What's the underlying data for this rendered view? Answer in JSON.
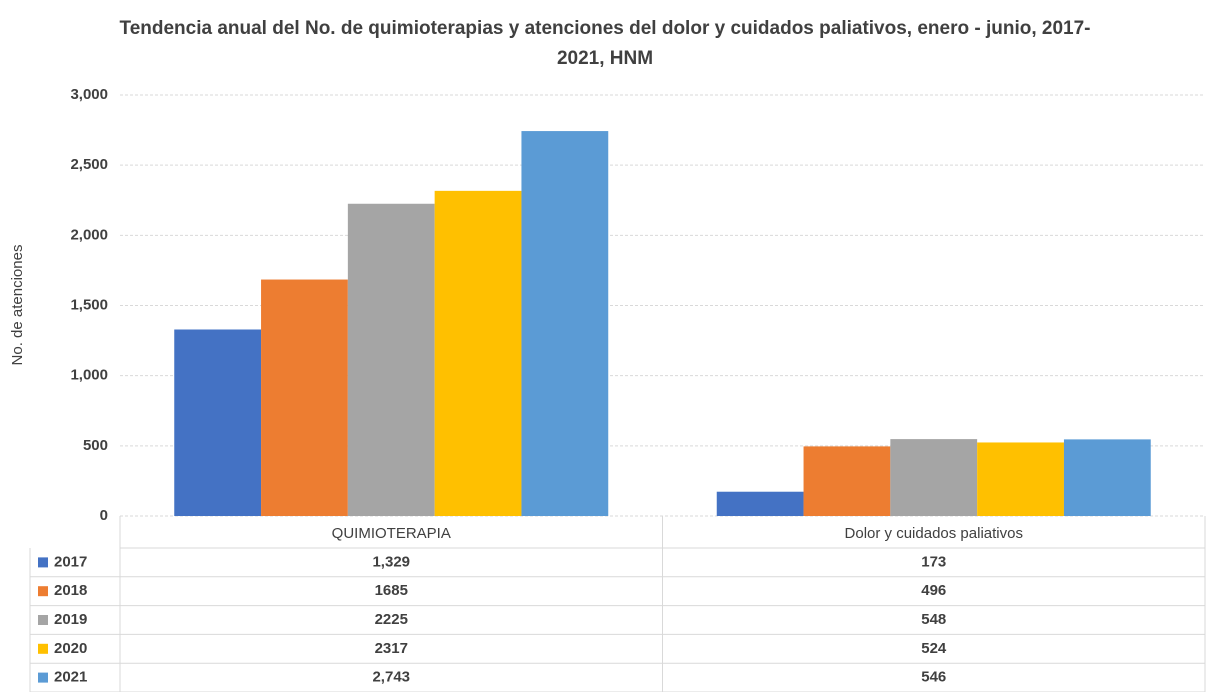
{
  "chart_data": {
    "type": "bar",
    "title": "Tendencia anual del No. de quimioterapias y atenciones del dolor y cuidados paliativos, enero - junio, 2017-2021, HNM",
    "ylabel": "No. de atenciones",
    "categories": [
      "QUIMIOTERAPIA",
      "Dolor y cuidados paliativos"
    ],
    "series": [
      {
        "name": "2017",
        "color": "#4472c4",
        "values": [
          1329,
          173
        ],
        "value_labels": [
          "1,329",
          "173"
        ]
      },
      {
        "name": "2018",
        "color": "#ed7d31",
        "values": [
          1685,
          496
        ],
        "value_labels": [
          "1685",
          "496"
        ]
      },
      {
        "name": "2019",
        "color": "#a5a5a5",
        "values": [
          2225,
          548
        ],
        "value_labels": [
          "2225",
          "548"
        ]
      },
      {
        "name": "2020",
        "color": "#ffc000",
        "values": [
          2317,
          524
        ],
        "value_labels": [
          "2317",
          "524"
        ]
      },
      {
        "name": "2021",
        "color": "#5b9bd5",
        "values": [
          2743,
          546
        ],
        "value_labels": [
          "2,743",
          "546"
        ]
      }
    ],
    "ylim": [
      0,
      3000
    ],
    "yticks": [
      0,
      500,
      {
        "value": 1000,
        "label": "1,000"
      },
      {
        "value": 1500,
        "label": "1,500"
      },
      {
        "value": 2000,
        "label": "2,000"
      },
      {
        "value": 2500,
        "label": "2,500"
      },
      {
        "value": 3000,
        "label": "3,000"
      }
    ],
    "grid": true
  }
}
